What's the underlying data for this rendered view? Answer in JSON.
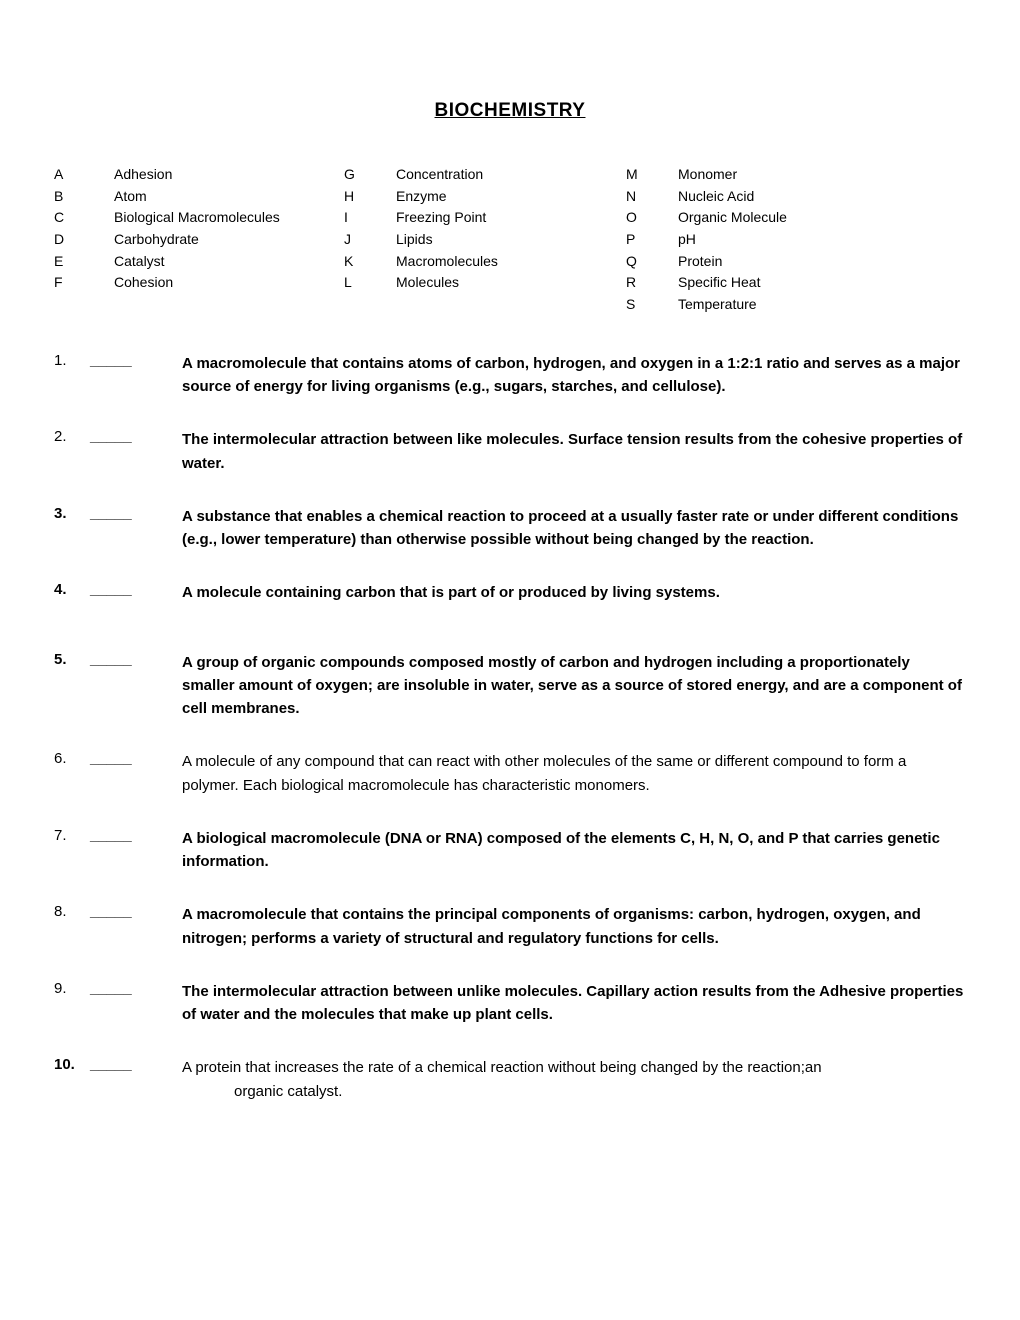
{
  "title": "BIOCHEMISTRY",
  "wordbank": {
    "col1": [
      {
        "letter": "A",
        "term": "Adhesion"
      },
      {
        "letter": "B",
        "term": "Atom"
      },
      {
        "letter": "C",
        "term": "Biological Macromolecules"
      },
      {
        "letter": "D",
        "term": "Carbohydrate"
      },
      {
        "letter": "E",
        "term": "Catalyst"
      },
      {
        "letter": "F",
        "term": "Cohesion"
      }
    ],
    "col2": [
      {
        "letter": "G",
        "term": "Concentration"
      },
      {
        "letter": "H",
        "term": "Enzyme"
      },
      {
        "letter": "I",
        "term": "Freezing Point"
      },
      {
        "letter": "J",
        "term": "Lipids"
      },
      {
        "letter": "K",
        "term": "Macromolecules"
      },
      {
        "letter": "L",
        "term": "Molecules"
      }
    ],
    "col3": [
      {
        "letter": "M",
        "term": "Monomer"
      },
      {
        "letter": "N",
        "term": "Nucleic Acid"
      },
      {
        "letter": "O",
        "term": "Organic Molecule"
      },
      {
        "letter": "P",
        "term": "pH"
      },
      {
        "letter": "Q",
        "term": "Protein"
      },
      {
        "letter": "R",
        "term": "Specific Heat"
      },
      {
        "letter": "S",
        "term": "Temperature"
      }
    ]
  },
  "blank": "_____",
  "questions": [
    {
      "num": "1.",
      "bold_num": false,
      "bold_text": true,
      "text": "A macromolecule that contains atoms of carbon, hydrogen, and oxygen in a 1:2:1 ratio and serves as a major source of energy for living organisms (e.g., sugars, starches, and cellulose).",
      "gap": "normal"
    },
    {
      "num": "2.",
      "bold_num": false,
      "bold_text": true,
      "text": "The intermolecular attraction between like molecules.  Surface tension results from the cohesive properties of water.",
      "gap": "normal"
    },
    {
      "num": "3.",
      "bold_num": true,
      "bold_text": true,
      "text": "A substance that enables a chemical reaction to proceed at a usually faster rate or under different conditions (e.g., lower temperature) than otherwise possible without being changed by the reaction.",
      "gap": "normal"
    },
    {
      "num": "4.",
      "bold_num": true,
      "bold_text": true,
      "text": "A molecule containing carbon that is part of or produced by living systems.",
      "gap": "wide"
    },
    {
      "num": "5.",
      "bold_num": true,
      "bold_text": true,
      "text": "A group of organic compounds composed mostly of carbon and hydrogen including a proportionately smaller amount of oxygen; are insoluble in water, serve as a source of stored energy, and are a component of cell membranes.",
      "gap": "normal"
    },
    {
      "num": "6.",
      "bold_num": false,
      "bold_text": false,
      "text": "A molecule of any compound that can react with other molecules of the same or different compound to form a polymer.  Each biological macromolecule has characteristic monomers.",
      "gap": "normal"
    },
    {
      "num": "7.",
      "bold_num": false,
      "bold_text": true,
      "text": "A biological macromolecule (DNA or RNA) composed of the elements C, H, N, O, and P that carries genetic information.",
      "gap": "normal"
    },
    {
      "num": "8.",
      "bold_num": false,
      "bold_text": true,
      "text": "A macromolecule that contains the principal components of organisms: carbon, hydrogen, oxygen, and nitrogen; performs a variety of structural and regulatory functions for cells.",
      "gap": "normal"
    },
    {
      "num": "9.",
      "bold_num": false,
      "bold_text": true,
      "text": "The intermolecular attraction between unlike molecules.  Capillary action results from the Adhesive properties of water and the molecules that make up plant cells.",
      "gap": "normal"
    },
    {
      "num": "10.",
      "bold_num": true,
      "bold_text": false,
      "text": "A protein that increases the rate of a chemical reaction without being changed by the reaction;an",
      "text2": "organic catalyst.",
      "gap": "normal"
    }
  ]
}
